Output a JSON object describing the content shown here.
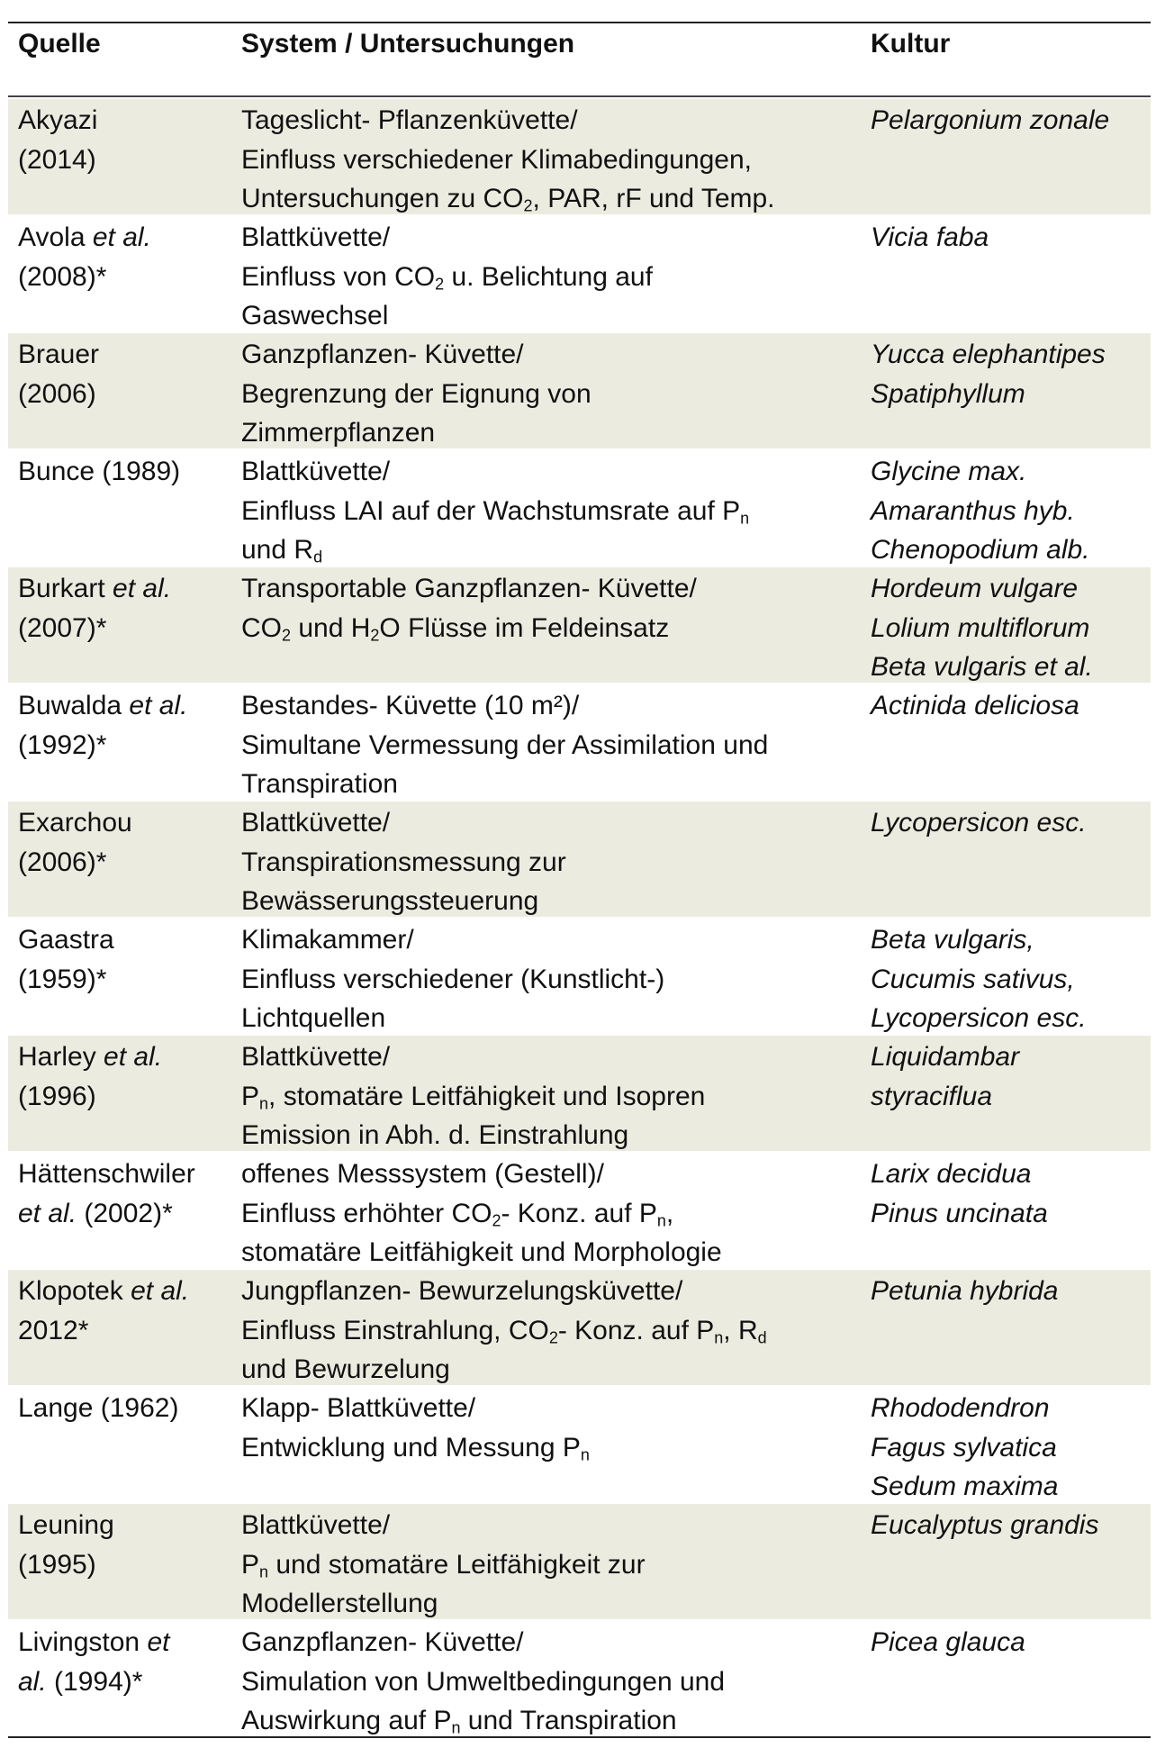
{
  "header": {
    "source": "Quelle",
    "system": "System / Untersuchungen",
    "crop": "Kultur"
  },
  "rows": [
    {
      "src1": "Akyazi",
      "src2": "(2014)",
      "sys1": "Tageslicht- Pflanzenküvette/",
      "sys2": "Einfluss verschiedener Klimabedingungen,",
      "sys3a": "Untersuchungen zu CO",
      "sys3b": "2",
      "sys3c": ", PAR, rF und Temp.",
      "crop1": "Pelargonium zonale"
    },
    {
      "src1a": "Avola ",
      "src1b": "et al.",
      "src2": "(2008)*",
      "sys1": "Blattküvette/",
      "sys2a": "Einfluss von CO",
      "sys2b": "2",
      "sys2c": " u. Belichtung auf",
      "sys3": "Gaswechsel",
      "crop1": "Vicia faba"
    },
    {
      "src1": "Brauer",
      "src2": "(2006)",
      "sys1": "Ganzpflanzen- Küvette/",
      "sys2": "Begrenzung der Eignung von",
      "sys3": "Zimmerpflanzen",
      "crop1": "Yucca elephantipes",
      "crop2": "Spatiphyllum"
    },
    {
      "src1": "Bunce (1989)",
      "sys1": "Blattküvette/",
      "sys2a": "Einfluss LAI auf der Wachstumsrate auf P",
      "sys2b": "n",
      "sys3a": "und R",
      "sys3b": "d",
      "crop1": "Glycine max.",
      "crop2": "Amaranthus hyb.",
      "crop3": "Chenopodium alb."
    },
    {
      "src1a": "Burkart ",
      "src1b": "et al.",
      "src2": "(2007)*",
      "sys1": "Transportable Ganzpflanzen- Küvette/",
      "sys2a": "CO",
      "sys2b": "2",
      "sys2c": " und H",
      "sys2d": "2",
      "sys2e": "O Flüsse im Feldeinsatz",
      "crop1": "Hordeum vulgare",
      "crop2": "Lolium multiflorum",
      "crop3": "Beta vulgaris et al."
    },
    {
      "src1a": "Buwalda ",
      "src1b": "et al.",
      "src2": "(1992)*",
      "sys1": "Bestandes- Küvette (10 m²)/",
      "sys2": "Simultane Vermessung der Assimilation und",
      "sys3": "Transpiration",
      "crop1": "Actinida deliciosa"
    },
    {
      "src1": "Exarchou",
      "src2": "(2006)*",
      "sys1": "Blattküvette/",
      "sys2": "Transpirationsmessung zur",
      "sys3": "Bewässerungssteuerung",
      "crop1": "Lycopersicon esc."
    },
    {
      "src1": "Gaastra",
      "src2": "(1959)*",
      "sys1": "Klimakammer/",
      "sys2": "Einfluss verschiedener (Kunstlicht-)",
      "sys3": "Lichtquellen",
      "crop1": "Beta vulgaris,",
      "crop2": "Cucumis sativus,",
      "crop3": "Lycopersicon esc."
    },
    {
      "src1a": "Harley ",
      "src1b": "et al.",
      "src2": "(1996)",
      "sys1": "Blattküvette/",
      "sys2a": "P",
      "sys2b": "n",
      "sys2c": ", stomatäre Leitfähigkeit und Isopren",
      "sys3": "Emission in Abh. d. Einstrahlung",
      "crop1": "Liquidambar",
      "crop2": "styraciflua"
    },
    {
      "src1": "Hättenschwiler",
      "src2a": "et al.",
      "src2b": " (2002)*",
      "sys1": "offenes Messsystem (Gestell)/",
      "sys2a": "Einfluss erhöhter CO",
      "sys2b": "2",
      "sys2c": "- Konz. auf P",
      "sys2d": "n",
      "sys2e": ",",
      "sys3": "stomatäre Leitfähigkeit und Morphologie",
      "crop1": "Larix decidua",
      "crop2": "Pinus uncinata"
    },
    {
      "src1a": "Klopotek ",
      "src1b": "et al.",
      "src2": "2012*",
      "sys1": "Jungpflanzen- Bewurzelungsküvette/",
      "sys2a": "Einfluss Einstrahlung, CO",
      "sys2b": "2",
      "sys2c": "- Konz. auf P",
      "sys2d": "n",
      "sys2e": ", R",
      "sys2f": "d",
      "sys3": "und Bewurzelung",
      "crop1": "Petunia hybrida"
    },
    {
      "src1": "Lange (1962)",
      "sys1": "Klapp- Blattküvette/",
      "sys2a": "Entwicklung und Messung P",
      "sys2b": "n",
      "crop1": "Rhododendron",
      "crop2": "Fagus sylvatica",
      "crop3": "Sedum maxima"
    },
    {
      "src1": "Leuning",
      "src2": "(1995)",
      "sys1": "Blattküvette/",
      "sys2a": "P",
      "sys2b": "n",
      "sys2c": " und stomatäre Leitfähigkeit zur",
      "sys3": "Modellerstellung",
      "crop1": "Eucalyptus grandis"
    },
    {
      "src1a": "Livingston ",
      "src1b": "et",
      "src2a": "al.",
      "src2b": " (1994)*",
      "sys1": "Ganzpflanzen- Küvette/",
      "sys2": "Simulation von Umweltbedingungen und",
      "sys3a": "Auswirkung auf P",
      "sys3b": "n",
      "sys3c": " und Transpiration",
      "crop1": "Picea glauca"
    }
  ]
}
